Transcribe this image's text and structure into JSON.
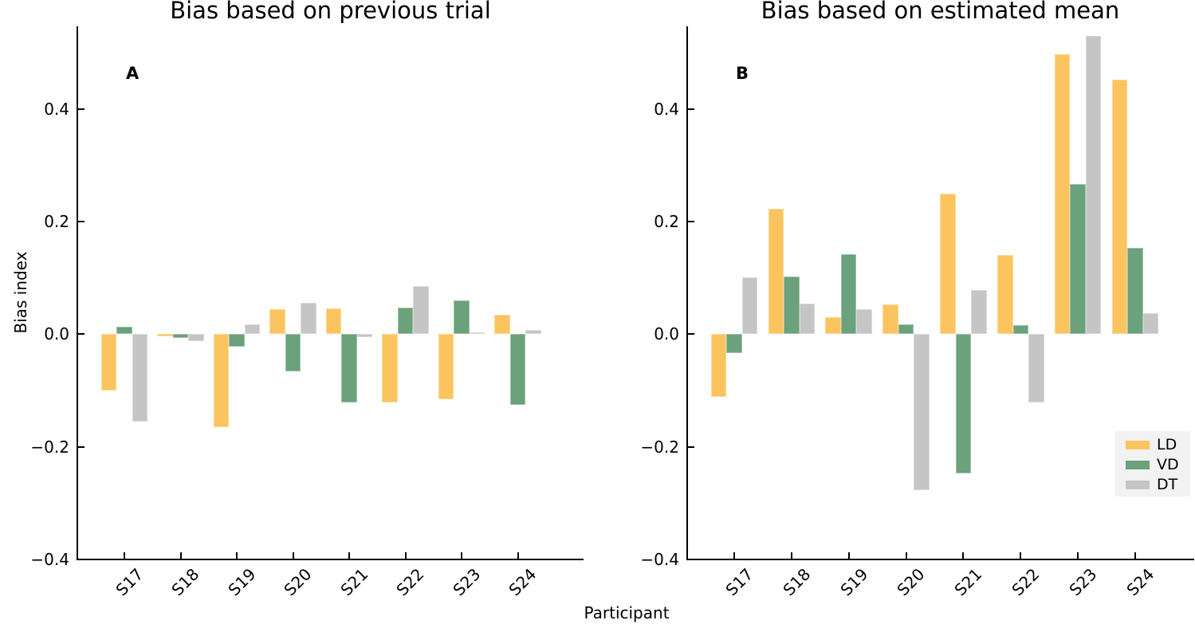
{
  "axes": {
    "ylabel": "Bias index",
    "xlabel": "Participant",
    "ytick_labels": [
      "0.4",
      "0.2",
      "0.0",
      "−0.2",
      "−0.4"
    ],
    "ytick_values": [
      0.4,
      0.2,
      0.0,
      -0.2,
      -0.4
    ]
  },
  "legend": {
    "position": "lower right of panel B",
    "background": "#f2f2f2",
    "items": [
      {
        "label": "LD",
        "color": "#FCC45F"
      },
      {
        "label": "VD",
        "color": "#6BA17B"
      },
      {
        "label": "DT",
        "color": "#C5C5C5"
      }
    ]
  },
  "chart_data": [
    {
      "type": "bar",
      "panel_label": "A",
      "title": "Bias based on previous trial",
      "xlabel": "Participant",
      "ylabel": "Bias index",
      "ylim": [
        -0.4,
        0.55
      ],
      "grid": false,
      "categories": [
        "S17",
        "S18",
        "S19",
        "S20",
        "S21",
        "S22",
        "S23",
        "S24"
      ],
      "series": [
        {
          "name": "LD",
          "color": "#FCC45F",
          "values": [
            -0.1,
            -0.003,
            -0.165,
            0.044,
            0.046,
            -0.122,
            -0.115,
            0.035
          ]
        },
        {
          "name": "VD",
          "color": "#6BA17B",
          "values": [
            0.014,
            -0.006,
            -0.022,
            -0.066,
            -0.121,
            0.048,
            0.06,
            -0.125
          ]
        },
        {
          "name": "DT",
          "color": "#C5C5C5",
          "values": [
            -0.155,
            -0.012,
            0.017,
            0.056,
            -0.005,
            0.085,
            0.004,
            0.008
          ]
        }
      ]
    },
    {
      "type": "bar",
      "panel_label": "B",
      "title": "Bias based on estimated mean",
      "xlabel": "Participant",
      "ylabel": "Bias index",
      "ylim": [
        -0.4,
        0.55
      ],
      "grid": false,
      "categories": [
        "S17",
        "S18",
        "S19",
        "S20",
        "S21",
        "S22",
        "S23",
        "S24"
      ],
      "series": [
        {
          "name": "LD",
          "color": "#FCC45F",
          "values": [
            -0.112,
            0.223,
            0.03,
            0.053,
            0.25,
            0.141,
            0.498,
            0.453
          ]
        },
        {
          "name": "VD",
          "color": "#6BA17B",
          "values": [
            -0.033,
            0.103,
            0.142,
            0.018,
            -0.247,
            0.016,
            0.267,
            0.153
          ]
        },
        {
          "name": "DT",
          "color": "#C5C5C5",
          "values": [
            0.101,
            0.055,
            0.045,
            -0.277,
            0.078,
            -0.121,
            0.53,
            0.037
          ]
        }
      ]
    }
  ]
}
